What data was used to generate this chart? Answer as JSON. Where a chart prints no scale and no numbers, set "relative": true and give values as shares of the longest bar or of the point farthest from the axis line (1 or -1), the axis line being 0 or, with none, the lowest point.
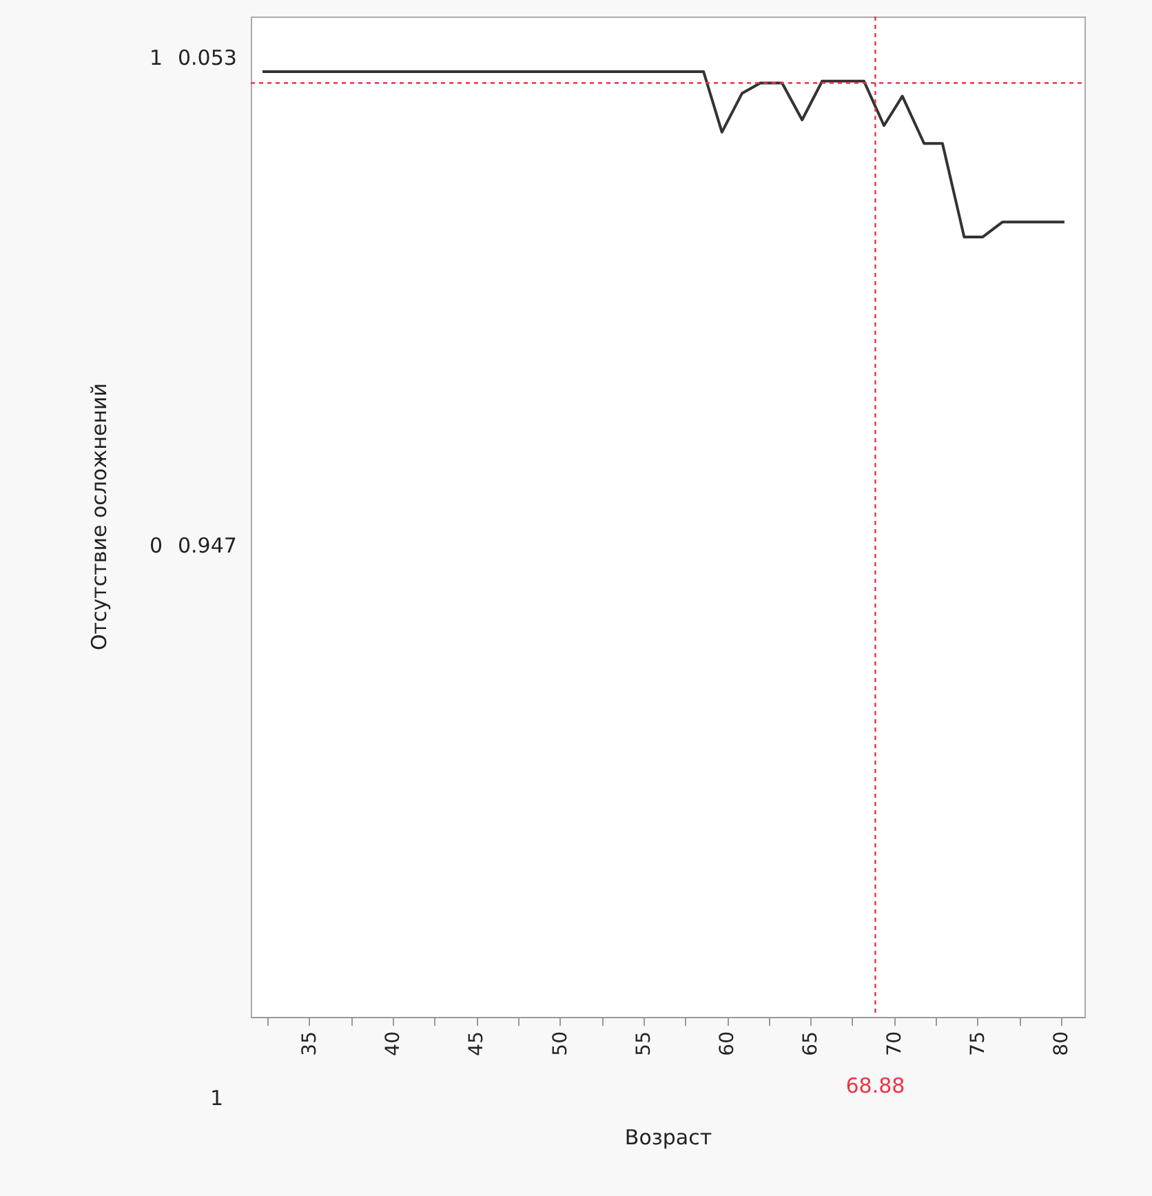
{
  "chart_data": {
    "type": "line",
    "relative": true,
    "xlabel": "Возраст",
    "x": [
      32.2,
      58.6,
      59.7,
      60.9,
      62.0,
      63.3,
      64.5,
      65.7,
      68.2,
      69.4,
      70.5,
      71.8,
      72.9,
      74.2,
      75.3,
      76.5,
      80.2
    ],
    "series": [
      {
        "color": "#333333",
        "values": [
          1,
          1,
          0.936,
          0.977,
          0.988,
          0.988,
          0.949,
          0.99,
          0.99,
          0.943,
          0.974,
          0.924,
          0.924,
          0.825,
          0.825,
          0.841,
          0.841
        ]
      }
    ],
    "xlim": [
      31.5,
      81.4
    ],
    "xticks": [
      {
        "value": 32.5,
        "label": null
      },
      35,
      {
        "value": 37.5,
        "label": null
      },
      40,
      {
        "value": 42.5,
        "label": null
      },
      45,
      {
        "value": 47.5,
        "label": null
      },
      50,
      {
        "value": 52.5,
        "label": null
      },
      55,
      {
        "value": 57.5,
        "label": null
      },
      60,
      {
        "value": 62.5,
        "label": null
      },
      65,
      {
        "value": 67.5,
        "label": null
      },
      70,
      {
        "value": 72.5,
        "label": null
      },
      75,
      {
        "value": 77.5,
        "label": null
      },
      80
    ],
    "ref_lines": [
      {
        "axis": "x",
        "value": 68.88,
        "label": "68.88",
        "color": "#ee3344",
        "line_style": "dashed"
      },
      {
        "axis": "y",
        "value": 0.988,
        "color": "#ee3344",
        "line_style": "dashed"
      }
    ],
    "annotations": [
      "Отсутствие осложнений",
      "1",
      "0.053",
      "0",
      "0.947",
      "1"
    ],
    "grid": false
  }
}
